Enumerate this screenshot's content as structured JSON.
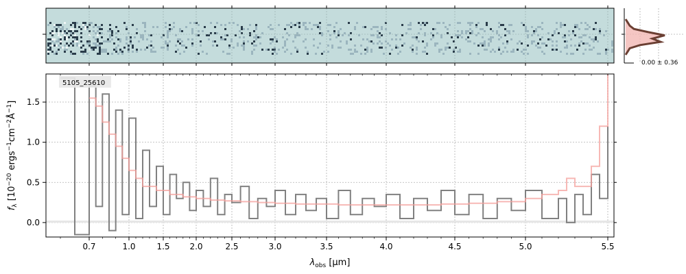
{
  "figure": {
    "object_id": "5105_25610",
    "profile_label": "0.00 ± 0.36"
  },
  "colors": {
    "spectrum": "#808080",
    "model": "#f4a09c",
    "profile": "#6b3f33",
    "profile_fill": "#f2b8b4",
    "stamp_bg": "#c4dcdc",
    "stamp_dark": "#1a2a3a"
  },
  "chart_data": [
    {
      "type": "line",
      "name": "1D spectrum",
      "x_axis": {
        "label_parts": [
          "λ",
          "obs",
          " [μm]"
        ],
        "scale": "nonlinear (spectral pixel)",
        "tick_labels": [
          "0.7",
          "1.0",
          "1.5",
          "2.0",
          "2.5",
          "3.0",
          "3.5",
          "4.0",
          "4.5",
          "5.0",
          "5.5"
        ],
        "tick_values": [
          0.7,
          1.0,
          1.5,
          2.0,
          2.5,
          3.0,
          3.5,
          4.0,
          4.5,
          5.0,
          5.5
        ],
        "range": [
          0.55,
          5.55
        ]
      },
      "y_axis": {
        "label_parts": [
          "f",
          "λ",
          " [10",
          "−20",
          " ergs",
          "−1",
          "cm",
          "−2",
          "Å",
          "−1",
          "]"
        ],
        "tick_labels": [
          "0.0",
          "0.5",
          "1.0",
          "1.5"
        ],
        "tick_values": [
          0.0,
          0.5,
          1.0,
          1.5
        ],
        "range": [
          -0.18,
          1.85
        ]
      },
      "grid": true,
      "series": [
        {
          "role": "data",
          "style": "step",
          "x": [
            0.6,
            0.65,
            0.7,
            0.75,
            0.8,
            0.85,
            0.9,
            0.95,
            1.0,
            1.1,
            1.2,
            1.3,
            1.4,
            1.5,
            1.6,
            1.7,
            1.8,
            1.9,
            2.0,
            2.1,
            2.2,
            2.3,
            2.4,
            2.5,
            2.6,
            2.7,
            2.8,
            2.9,
            3.0,
            3.1,
            3.2,
            3.3,
            3.4,
            3.5,
            3.6,
            3.7,
            3.8,
            3.9,
            4.0,
            4.1,
            4.2,
            4.3,
            4.4,
            4.5,
            4.6,
            4.7,
            4.8,
            4.9,
            5.0,
            5.1,
            5.2,
            5.25,
            5.3,
            5.35,
            5.4,
            5.45,
            5.5
          ],
          "y": [
            1.8,
            -0.15,
            1.7,
            0.2,
            1.6,
            -0.1,
            1.4,
            0.1,
            1.3,
            0.05,
            0.9,
            0.2,
            0.7,
            0.1,
            0.6,
            0.3,
            0.5,
            0.15,
            0.4,
            0.2,
            0.55,
            0.1,
            0.35,
            0.25,
            0.45,
            0.05,
            0.3,
            0.2,
            0.4,
            0.1,
            0.35,
            0.15,
            0.3,
            0.05,
            0.4,
            0.1,
            0.3,
            0.2,
            0.35,
            0.05,
            0.3,
            0.15,
            0.4,
            0.1,
            0.35,
            0.05,
            0.3,
            0.15,
            0.4,
            0.05,
            0.3,
            0.0,
            0.35,
            0.1,
            0.6,
            0.3,
            1.2
          ]
        },
        {
          "role": "model",
          "style": "step",
          "x": [
            0.7,
            0.75,
            0.8,
            0.85,
            0.9,
            0.95,
            1.0,
            1.1,
            1.2,
            1.4,
            1.6,
            1.8,
            2.0,
            2.2,
            2.4,
            2.6,
            2.8,
            3.0,
            3.2,
            3.4,
            3.6,
            3.8,
            4.0,
            4.2,
            4.4,
            4.6,
            4.8,
            5.0,
            5.1,
            5.2,
            5.25,
            5.3,
            5.4,
            5.45,
            5.5
          ],
          "y": [
            1.55,
            1.45,
            1.25,
            1.1,
            0.95,
            0.8,
            0.65,
            0.55,
            0.45,
            0.4,
            0.35,
            0.32,
            0.3,
            0.28,
            0.27,
            0.26,
            0.25,
            0.24,
            0.23,
            0.23,
            0.22,
            0.22,
            0.22,
            0.22,
            0.23,
            0.24,
            0.26,
            0.3,
            0.35,
            0.4,
            0.55,
            0.45,
            0.7,
            1.2,
            1.85
          ]
        }
      ]
    },
    {
      "type": "line",
      "name": "cross-dispersion profile",
      "series": [
        {
          "role": "profile",
          "y": [
            0.0,
            0.05,
            0.1,
            0.2,
            0.55,
            0.95,
            0.65,
            0.85,
            0.35,
            0.1,
            0.05,
            0.0
          ]
        }
      ]
    }
  ]
}
